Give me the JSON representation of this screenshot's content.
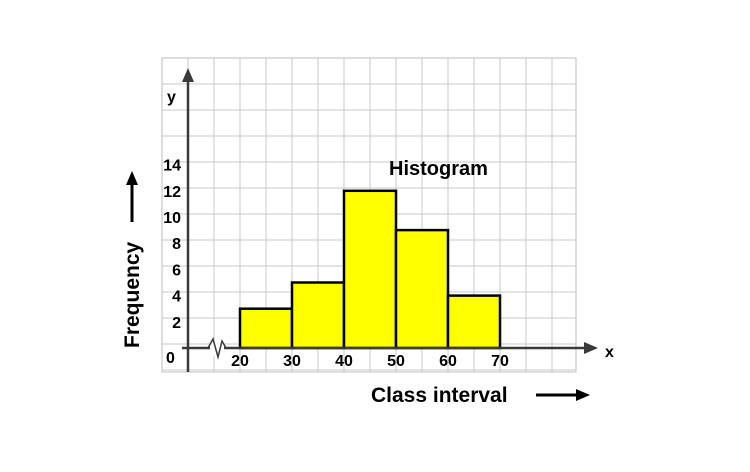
{
  "chart_data": {
    "type": "bar",
    "title": "Histogram",
    "xlabel": "Class interval",
    "ylabel": "Frequency",
    "x_axis_symbol": "x",
    "y_axis_symbol": "y",
    "origin_label": "0",
    "x_ticks": [
      "20",
      "30",
      "40",
      "50",
      "60",
      "70"
    ],
    "y_ticks": [
      "2",
      "4",
      "6",
      "8",
      "10",
      "12",
      "14"
    ],
    "bins": [
      {
        "from": 20,
        "to": 30,
        "value": 3
      },
      {
        "from": 30,
        "to": 40,
        "value": 5
      },
      {
        "from": 40,
        "to": 50,
        "value": 12
      },
      {
        "from": 50,
        "to": 60,
        "value": 9
      },
      {
        "from": 60,
        "to": 70,
        "value": 4
      }
    ],
    "xlim": [
      20,
      70
    ],
    "ylim": [
      0,
      14
    ],
    "x_axis_break": true,
    "grid": true,
    "bar_color": "#ffff00",
    "bar_edge_color": "#000000",
    "grid_color": "#c8c8c8",
    "axis_color": "#3a3a3a"
  }
}
